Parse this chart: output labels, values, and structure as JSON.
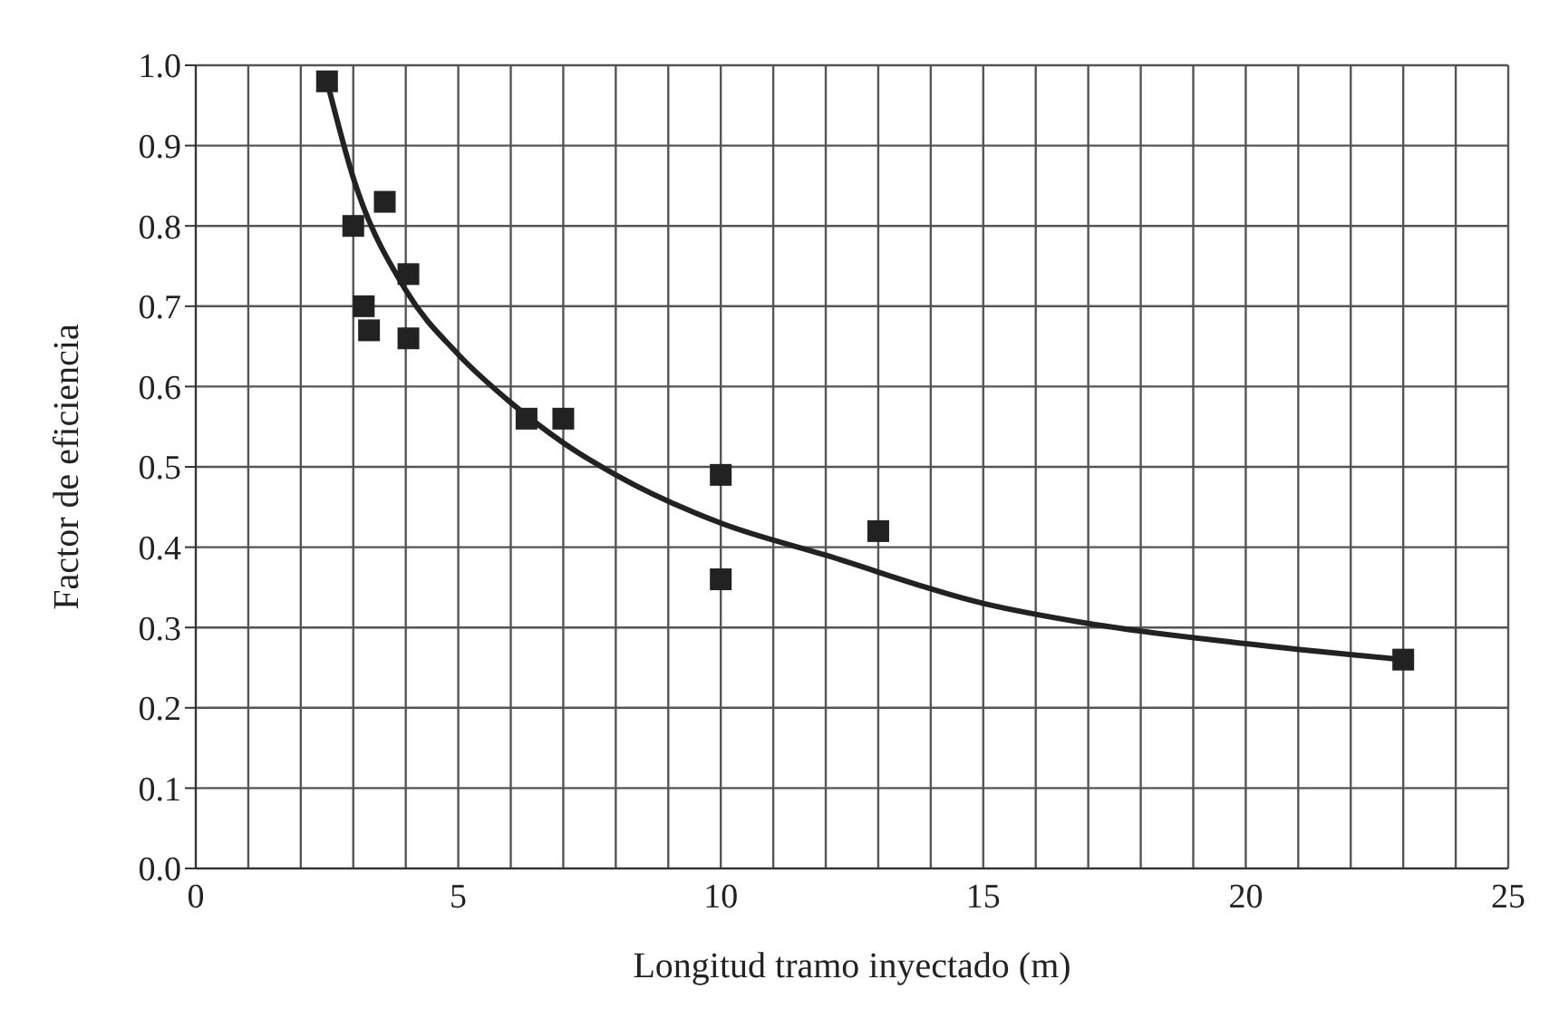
{
  "chart_data": {
    "type": "scatter",
    "xlabel": "Longitud tramo inyectado (m)",
    "ylabel": "Factor de eficiencia",
    "series": [
      {
        "color": "#222222",
        "x": [
          2.5,
          3.0,
          3.6,
          3.2,
          3.3,
          4.05,
          4.05,
          6.3,
          7.0,
          10,
          10,
          13,
          23
        ],
        "values": [
          0.98,
          0.8,
          0.83,
          0.7,
          0.67,
          0.66,
          0.74,
          0.56,
          0.56,
          0.49,
          0.36,
          0.42,
          0.26
        ]
      },
      {
        "type": "line",
        "color": "#222222",
        "marker": "none",
        "x": [
          2.5,
          3,
          4,
          5,
          6,
          7,
          8,
          10,
          12,
          15,
          17,
          20,
          23
        ],
        "values": [
          0.98,
          0.86,
          0.72,
          0.64,
          0.58,
          0.53,
          0.49,
          0.43,
          0.39,
          0.33,
          0.305,
          0.28,
          0.26
        ]
      }
    ],
    "xlim": [
      0,
      25
    ],
    "ylim": [
      0,
      1
    ],
    "xticks": [
      0,
      {
        "value": 1,
        "label": null
      },
      {
        "value": 2,
        "label": null
      },
      {
        "value": 3,
        "label": null
      },
      {
        "value": 4,
        "label": null
      },
      5,
      {
        "value": 6,
        "label": null
      },
      {
        "value": 7,
        "label": null
      },
      {
        "value": 8,
        "label": null
      },
      {
        "value": 9,
        "label": null
      },
      10,
      {
        "value": 11,
        "label": null
      },
      {
        "value": 12,
        "label": null
      },
      {
        "value": 13,
        "label": null
      },
      {
        "value": 14,
        "label": null
      },
      15,
      {
        "value": 16,
        "label": null
      },
      {
        "value": 17,
        "label": null
      },
      {
        "value": 18,
        "label": null
      },
      {
        "value": 19,
        "label": null
      },
      20,
      {
        "value": 21,
        "label": null
      },
      {
        "value": 22,
        "label": null
      },
      {
        "value": 23,
        "label": null
      },
      {
        "value": 24,
        "label": null
      },
      25
    ],
    "yticks": [
      {
        "value": 0,
        "label": "0.0"
      },
      0.1,
      0.2,
      0.3,
      0.4,
      0.5,
      0.6,
      0.7,
      0.8,
      0.9,
      {
        "value": 1,
        "label": "1.0"
      }
    ],
    "grid": true,
    "legend": false,
    "marker": "square",
    "line_style": "solid"
  }
}
